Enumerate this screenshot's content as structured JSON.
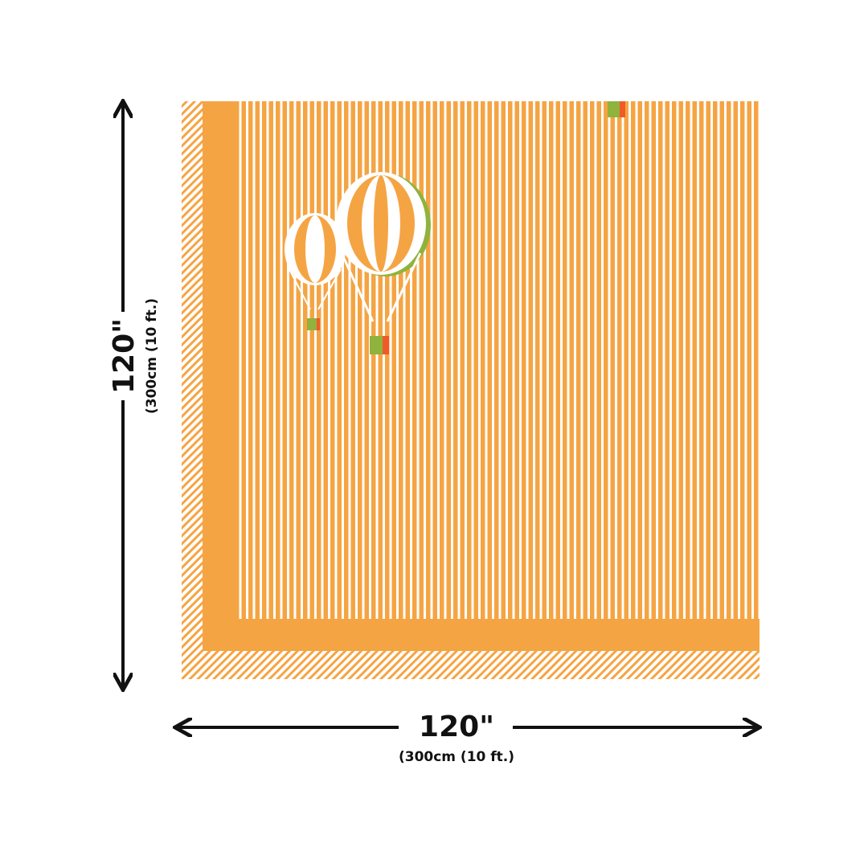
{
  "dimensions": {
    "height": {
      "label": "120\"",
      "sublabel": "(300cm (10 ft.)"
    },
    "width": {
      "label": "120\"",
      "sublabel": "(300cm (10 ft.)"
    }
  }
}
